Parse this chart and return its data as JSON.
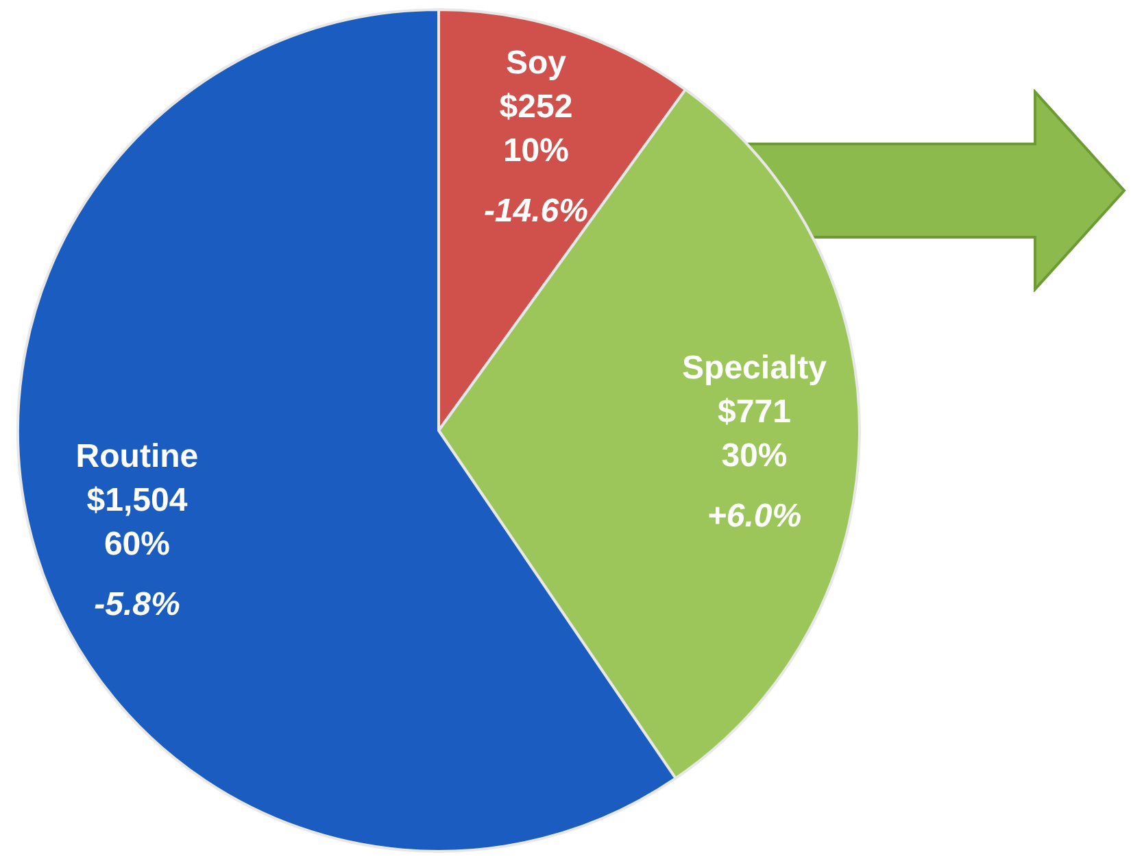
{
  "chart_data": {
    "type": "pie",
    "categories": [
      "Soy",
      "Specialty",
      "Routine"
    ],
    "values": [
      252,
      771,
      1504
    ],
    "colors": [
      "#d0504c",
      "#9cc65a",
      "#1b5cc0"
    ],
    "value_labels": [
      "$252",
      "$771",
      "$1,504"
    ],
    "annotations": [
      {
        "text": "10%",
        "x": "Soy"
      },
      {
        "text": "-14.6%",
        "x": "Soy"
      },
      {
        "text": "30%",
        "x": "Specialty"
      },
      {
        "text": "+6.0%",
        "x": "Specialty"
      },
      {
        "text": "60%",
        "x": "Routine"
      },
      {
        "text": "-5.8%",
        "x": "Routine"
      }
    ],
    "legend": false
  }
}
